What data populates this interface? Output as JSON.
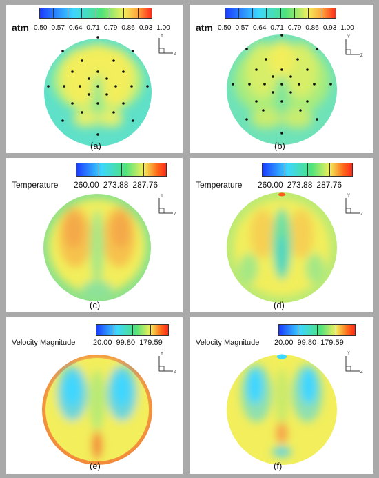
{
  "panels": [
    {
      "id": "a",
      "caption": "(a)",
      "label": "atm",
      "ticks": [
        "0.50",
        "0.57",
        "0.64",
        "0.71",
        "0.79",
        "0.86",
        "0.93",
        "1.00"
      ],
      "segments": 8
    },
    {
      "id": "b",
      "caption": "(b)",
      "label": "atm",
      "ticks": [
        "0.50",
        "0.57",
        "0.64",
        "0.71",
        "0.79",
        "0.86",
        "0.93",
        "1.00"
      ],
      "segments": 8
    },
    {
      "id": "c",
      "caption": "(c)",
      "label": "Temperature",
      "ticks": [
        "260.00",
        "273.88",
        "287.76"
      ],
      "segments": 4
    },
    {
      "id": "d",
      "caption": "(d)",
      "label": "Temperature",
      "ticks": [
        "260.00",
        "273.88",
        "287.76"
      ],
      "segments": 4
    },
    {
      "id": "e",
      "caption": "(e)",
      "label": "Velocity Magnitude",
      "ticks": [
        "20.00",
        "99.80",
        "179.59"
      ],
      "segments": 4
    },
    {
      "id": "f",
      "caption": "(f)",
      "label": "Velocity Magnitude",
      "ticks": [
        "20.00",
        "99.80",
        "179.59"
      ],
      "segments": 4
    }
  ],
  "axes": {
    "y": "Y",
    "z": "Z"
  },
  "colors": {
    "blue": "#1a3cff",
    "cyan": "#3cd6ff",
    "green": "#4fe37a",
    "yellow": "#f2ee5c",
    "orange": "#ffa23a",
    "red": "#ff2a1a"
  }
}
